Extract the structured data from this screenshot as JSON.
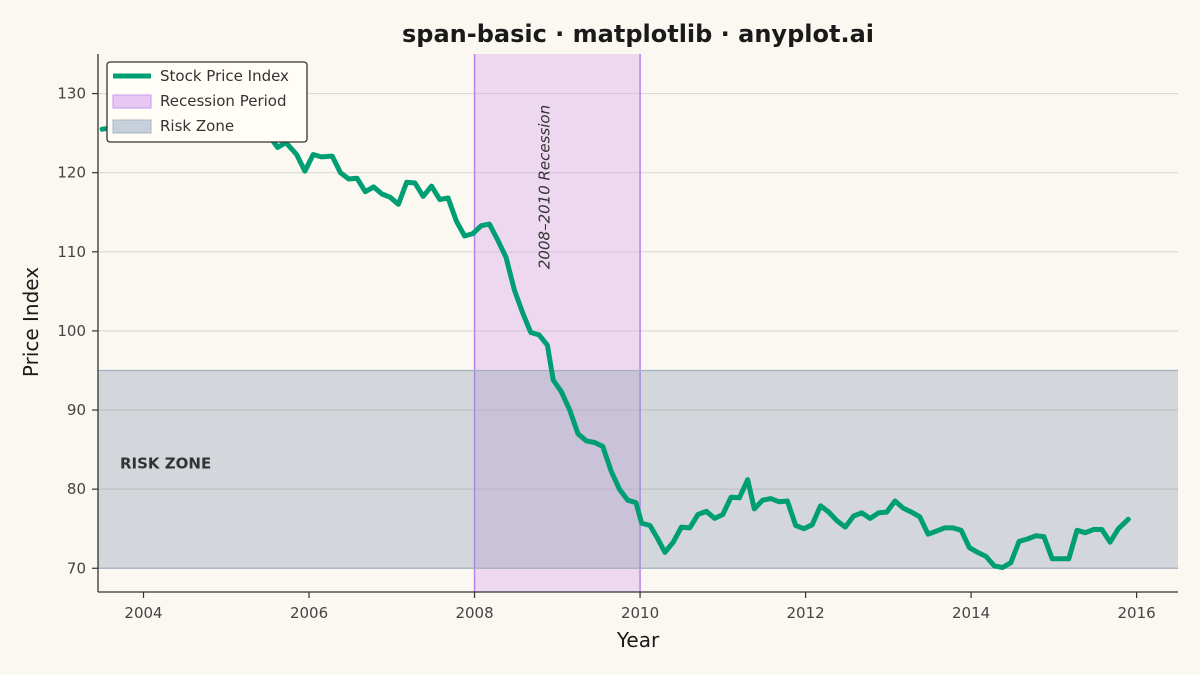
{
  "chart_data": {
    "type": "line",
    "title": "span-basic · matplotlib · anyplot.ai",
    "xlabel": "Year",
    "ylabel": "Price Index",
    "xlim": [
      2003.45,
      2016.5
    ],
    "ylim": [
      67,
      135
    ],
    "x_ticks": [
      2004,
      2006,
      2008,
      2010,
      2012,
      2014,
      2016
    ],
    "y_ticks": [
      70,
      80,
      90,
      100,
      110,
      120,
      130
    ],
    "grid": "horizontal",
    "legend_position": "top-left",
    "legend": [
      {
        "label": "Stock Price Index",
        "kind": "line",
        "color": "#009E73"
      },
      {
        "label": "Recession Period",
        "kind": "patch",
        "color": "#E8C7F2",
        "edge": "#C69BF7"
      },
      {
        "label": "Risk Zone",
        "kind": "patch",
        "color": "#C7CFDA",
        "edge": "#A9B5C4"
      }
    ],
    "spans": [
      {
        "name": "Recession Period",
        "orientation": "vertical",
        "from": 2008.0,
        "to": 2010.0,
        "color": "#D9A8EE",
        "opacity": 0.4,
        "edge": "#B883F0",
        "label": "2008–2010 Recession"
      },
      {
        "name": "Risk Zone",
        "orientation": "horizontal",
        "from": 70,
        "to": 95,
        "color": "#8A9BB3",
        "opacity": 0.35,
        "edge": "#A5B1C2",
        "label": "RISK ZONE"
      }
    ],
    "series": [
      {
        "name": "Stock Price Index",
        "color": "#009E73",
        "points": [
          [
            2003.5,
            125.5
          ],
          [
            2004.0,
            126.2
          ],
          [
            2004.5,
            125.4
          ],
          [
            2005.0,
            125.9
          ],
          [
            2005.45,
            124.8
          ],
          [
            2005.55,
            124.2
          ],
          [
            2005.62,
            123.2
          ],
          [
            2005.72,
            123.8
          ],
          [
            2005.85,
            122.3
          ],
          [
            2005.95,
            120.2
          ],
          [
            2006.05,
            122.3
          ],
          [
            2006.15,
            122.0
          ],
          [
            2006.28,
            122.1
          ],
          [
            2006.38,
            120.0
          ],
          [
            2006.48,
            119.2
          ],
          [
            2006.58,
            119.3
          ],
          [
            2006.68,
            117.6
          ],
          [
            2006.78,
            118.2
          ],
          [
            2006.88,
            117.3
          ],
          [
            2006.98,
            116.9
          ],
          [
            2007.08,
            116.0
          ],
          [
            2007.18,
            118.8
          ],
          [
            2007.28,
            118.7
          ],
          [
            2007.38,
            117.0
          ],
          [
            2007.48,
            118.3
          ],
          [
            2007.58,
            116.6
          ],
          [
            2007.68,
            116.8
          ],
          [
            2007.78,
            113.9
          ],
          [
            2007.88,
            112.0
          ],
          [
            2007.98,
            112.3
          ],
          [
            2008.08,
            113.3
          ],
          [
            2008.18,
            113.5
          ],
          [
            2008.28,
            111.5
          ],
          [
            2008.38,
            109.3
          ],
          [
            2008.48,
            105.2
          ],
          [
            2008.58,
            102.3
          ],
          [
            2008.68,
            99.8
          ],
          [
            2008.78,
            99.5
          ],
          [
            2008.88,
            98.2
          ],
          [
            2008.95,
            93.8
          ],
          [
            2009.05,
            92.3
          ],
          [
            2009.15,
            90.0
          ],
          [
            2009.25,
            87.0
          ],
          [
            2009.35,
            86.1
          ],
          [
            2009.45,
            85.9
          ],
          [
            2009.55,
            85.4
          ],
          [
            2009.65,
            82.3
          ],
          [
            2009.75,
            80.0
          ],
          [
            2009.85,
            78.6
          ],
          [
            2009.95,
            78.3
          ],
          [
            2010.02,
            75.7
          ],
          [
            2010.12,
            75.4
          ],
          [
            2010.22,
            73.6
          ],
          [
            2010.3,
            72.0
          ],
          [
            2010.4,
            73.3
          ],
          [
            2010.5,
            75.2
          ],
          [
            2010.6,
            75.1
          ],
          [
            2010.7,
            76.8
          ],
          [
            2010.8,
            77.2
          ],
          [
            2010.9,
            76.3
          ],
          [
            2011.0,
            76.8
          ],
          [
            2011.1,
            79.0
          ],
          [
            2011.2,
            78.9
          ],
          [
            2011.3,
            81.2
          ],
          [
            2011.38,
            77.5
          ],
          [
            2011.48,
            78.6
          ],
          [
            2011.58,
            78.8
          ],
          [
            2011.68,
            78.4
          ],
          [
            2011.78,
            78.5
          ],
          [
            2011.88,
            75.4
          ],
          [
            2011.98,
            75.0
          ],
          [
            2012.08,
            75.5
          ],
          [
            2012.18,
            77.9
          ],
          [
            2012.28,
            77.1
          ],
          [
            2012.38,
            76.0
          ],
          [
            2012.48,
            75.2
          ],
          [
            2012.58,
            76.6
          ],
          [
            2012.68,
            77.0
          ],
          [
            2012.78,
            76.3
          ],
          [
            2012.88,
            77.0
          ],
          [
            2012.98,
            77.1
          ],
          [
            2013.08,
            78.5
          ],
          [
            2013.18,
            77.6
          ],
          [
            2013.28,
            77.1
          ],
          [
            2013.38,
            76.5
          ],
          [
            2013.48,
            74.3
          ],
          [
            2013.58,
            74.7
          ],
          [
            2013.68,
            75.1
          ],
          [
            2013.78,
            75.1
          ],
          [
            2013.88,
            74.8
          ],
          [
            2013.98,
            72.6
          ],
          [
            2014.08,
            72.0
          ],
          [
            2014.18,
            71.5
          ],
          [
            2014.28,
            70.3
          ],
          [
            2014.38,
            70.1
          ],
          [
            2014.48,
            70.7
          ],
          [
            2014.58,
            73.4
          ],
          [
            2014.68,
            73.7
          ],
          [
            2014.78,
            74.1
          ],
          [
            2014.88,
            74.0
          ],
          [
            2014.98,
            71.2
          ],
          [
            2015.08,
            71.2
          ],
          [
            2015.18,
            71.2
          ],
          [
            2015.28,
            74.8
          ],
          [
            2015.38,
            74.5
          ],
          [
            2015.48,
            74.9
          ],
          [
            2015.58,
            74.9
          ],
          [
            2015.68,
            73.3
          ],
          [
            2015.78,
            75.0
          ],
          [
            2015.9,
            76.2
          ]
        ]
      }
    ]
  }
}
